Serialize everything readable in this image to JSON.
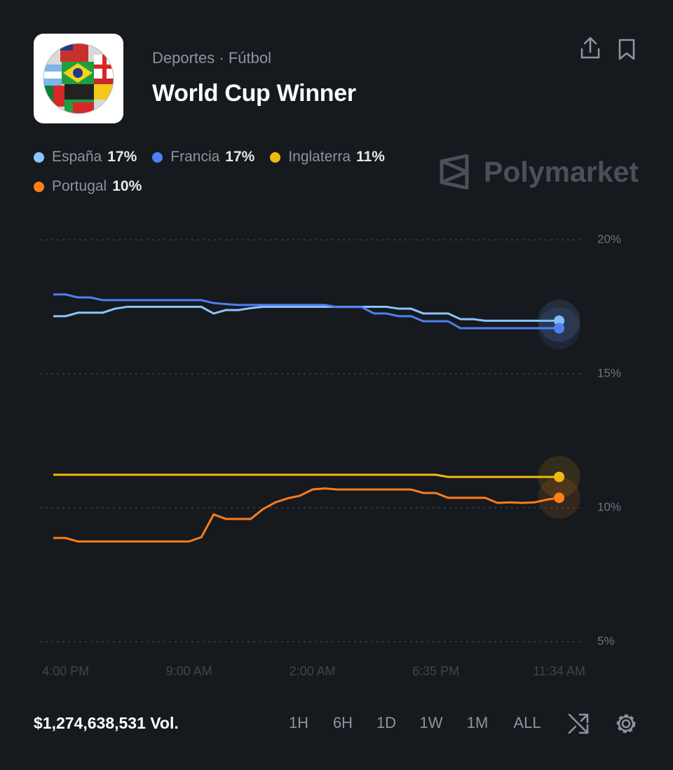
{
  "header": {
    "category": "Deportes · Fútbol",
    "title": "World Cup Winner"
  },
  "brand": "Polymarket",
  "legend": [
    "17%",
    "17%",
    "11%",
    "10%"
  ],
  "chart_data": {
    "type": "line",
    "categories": [
      null,
      "4:00 PM",
      null,
      null,
      null,
      null,
      null,
      null,
      null,
      null,
      null,
      "9:00 AM",
      null,
      null,
      null,
      null,
      null,
      null,
      null,
      null,
      null,
      "2:00 AM",
      null,
      null,
      null,
      null,
      null,
      null,
      null,
      null,
      null,
      "6:35 PM",
      null,
      null,
      null,
      null,
      null,
      null,
      null,
      null,
      null,
      "11:34 AM"
    ],
    "ylim": [
      5,
      20
    ],
    "yticks": [
      {
        "value": 20,
        "label": "20%"
      },
      {
        "value": 15,
        "label": "15%"
      },
      {
        "value": 10,
        "label": "10%"
      },
      {
        "value": 5,
        "label": "5%"
      }
    ],
    "grid": true,
    "series": [
      {
        "name": "España",
        "color": "#8cc4ff",
        "values": [
          17.15,
          17.15,
          17.28,
          17.28,
          17.28,
          17.43,
          17.5,
          17.5,
          17.5,
          17.5,
          17.5,
          17.5,
          17.5,
          17.25,
          17.38,
          17.38,
          17.45,
          17.5,
          17.5,
          17.5,
          17.5,
          17.5,
          17.5,
          17.5,
          17.5,
          17.5,
          17.5,
          17.5,
          17.43,
          17.43,
          17.25,
          17.25,
          17.25,
          17.04,
          17.04,
          16.98,
          16.98,
          16.98,
          16.98,
          16.98,
          16.98,
          16.98
        ]
      },
      {
        "name": "Francia",
        "color": "#4f7ff2",
        "values": [
          17.96,
          17.96,
          17.85,
          17.85,
          17.75,
          17.75,
          17.75,
          17.75,
          17.75,
          17.75,
          17.75,
          17.75,
          17.75,
          17.64,
          17.6,
          17.57,
          17.57,
          17.57,
          17.57,
          17.57,
          17.57,
          17.57,
          17.57,
          17.49,
          17.49,
          17.49,
          17.25,
          17.25,
          17.15,
          17.15,
          16.96,
          16.96,
          16.96,
          16.7,
          16.7,
          16.7,
          16.7,
          16.7,
          16.7,
          16.7,
          16.7,
          16.7
        ]
      },
      {
        "name": "Inglaterra",
        "color": "#f2bb0f",
        "values": [
          11.23,
          11.23,
          11.23,
          11.23,
          11.23,
          11.23,
          11.23,
          11.23,
          11.23,
          11.23,
          11.23,
          11.23,
          11.23,
          11.23,
          11.23,
          11.23,
          11.23,
          11.23,
          11.23,
          11.23,
          11.23,
          11.23,
          11.23,
          11.23,
          11.23,
          11.23,
          11.23,
          11.23,
          11.23,
          11.23,
          11.23,
          11.23,
          11.15,
          11.15,
          11.15,
          11.15,
          11.15,
          11.15,
          11.15,
          11.15,
          11.15,
          11.15
        ]
      },
      {
        "name": "Portugal",
        "color": "#ff7d1a",
        "values": [
          8.87,
          8.87,
          8.74,
          8.74,
          8.74,
          8.74,
          8.74,
          8.74,
          8.74,
          8.74,
          8.74,
          8.74,
          8.9,
          9.75,
          9.58,
          9.58,
          9.58,
          9.95,
          10.2,
          10.35,
          10.45,
          10.68,
          10.72,
          10.68,
          10.68,
          10.68,
          10.68,
          10.68,
          10.68,
          10.68,
          10.55,
          10.55,
          10.37,
          10.37,
          10.37,
          10.37,
          10.18,
          10.2,
          10.18,
          10.2,
          10.3,
          10.37
        ]
      }
    ]
  },
  "footer": {
    "volume": "$1,274,638,531 Vol.",
    "ranges": [
      "1H",
      "6H",
      "1D",
      "1W",
      "1M",
      "ALL"
    ]
  }
}
